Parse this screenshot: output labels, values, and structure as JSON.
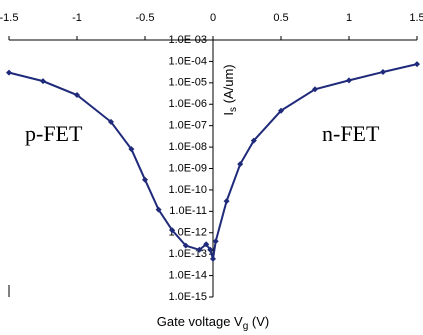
{
  "chart_data": {
    "type": "line",
    "x": [
      -1.5,
      -1.25,
      -1.0,
      -0.75,
      -0.6,
      -0.5,
      -0.4,
      -0.3,
      -0.2,
      -0.1,
      -0.05,
      -0.02,
      0,
      0.02,
      0.1,
      0.2,
      0.3,
      0.5,
      0.75,
      1.0,
      1.25,
      1.5
    ],
    "series": [
      {
        "color": "#1f2a7a",
        "values": [
          3e-05,
          1.2e-05,
          2.7e-06,
          1.5e-07,
          8e-09,
          3e-10,
          1.2e-11,
          1.3e-12,
          2.5e-13,
          1.6e-13,
          2.9e-13,
          1.6e-13,
          6e-14,
          4e-13,
          3e-11,
          1.6e-09,
          2e-08,
          5e-07,
          5e-06,
          1.3e-05,
          3.2e-05,
          7.5e-05
        ]
      }
    ],
    "xlim": [
      -1.5,
      1.5
    ],
    "xticks": [
      -1.5,
      -1,
      -0.5,
      0,
      0.5,
      1,
      1.5
    ],
    "ylim": [
      1e-15,
      0.001
    ],
    "ylog": true,
    "yticks": [
      {
        "value": 1e-15,
        "label": "1.0E-15"
      },
      {
        "value": 1e-14,
        "label": "1.0E-14"
      },
      {
        "value": 1e-13,
        "label": "1.0E-13"
      },
      {
        "value": 1e-12,
        "label": "1.0E-12"
      },
      {
        "value": 1e-11,
        "label": "1.0E-11"
      },
      {
        "value": 1e-10,
        "label": "1.0E-10"
      },
      {
        "value": 1e-09,
        "label": "1.0E-09"
      },
      {
        "value": 1e-08,
        "label": "1.0E-08"
      },
      {
        "value": 1e-07,
        "label": "1.0E-07"
      },
      {
        "value": 1e-06,
        "label": "1.0E-06"
      },
      {
        "value": 1e-05,
        "label": "1.0E-05"
      },
      {
        "value": 0.0001,
        "label": "1.0E-04"
      },
      {
        "value": 0.001,
        "label": "1.0E-03"
      }
    ],
    "xlabel": [
      "Gate voltage V",
      "g",
      " (V)"
    ],
    "ylabel": [
      "I",
      "s",
      " (A/um)"
    ],
    "annotations": [
      "p-FET",
      "n-FET"
    ]
  }
}
